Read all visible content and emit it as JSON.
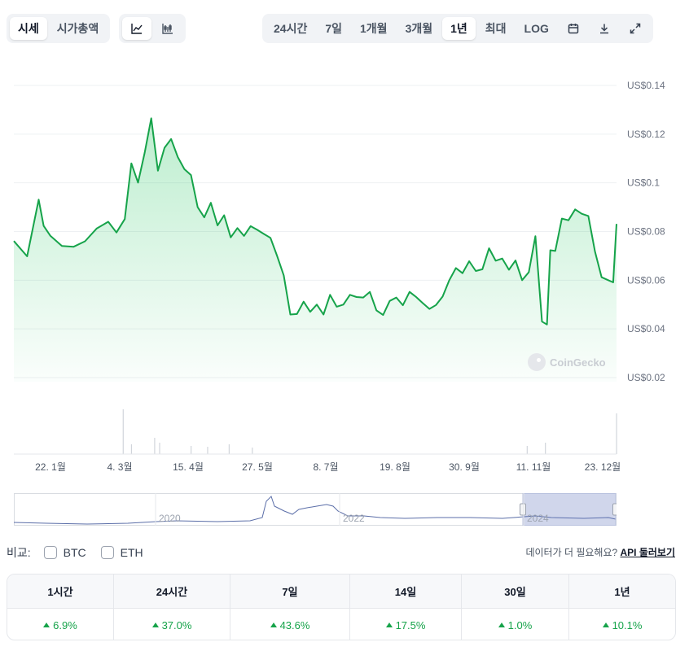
{
  "toolbar": {
    "view_tabs": [
      "시세",
      "시가총액"
    ],
    "range_tabs": [
      "24시간",
      "7일",
      "1개월",
      "3개월",
      "1년",
      "최대",
      "LOG"
    ],
    "active_range": "1년"
  },
  "chart_data": {
    "type": "area",
    "currency_prefix": "US$",
    "y_ticks": [
      "US$0.14",
      "US$0.12",
      "US$0.1",
      "US$0.08",
      "US$0.06",
      "US$0.04",
      "US$0.02"
    ],
    "x_ticks": [
      "22. 1월",
      "4. 3월",
      "15. 4월",
      "27. 5월",
      "8. 7월",
      "19. 8월",
      "30. 9월",
      "11. 11월",
      "23. 12월"
    ],
    "ylim": [
      0.02,
      0.14
    ],
    "price_series": {
      "name": "시세",
      "x": [
        "2023-12-25",
        "2024-01-02",
        "2024-01-09",
        "2024-01-12",
        "2024-01-16",
        "2024-01-23",
        "2024-01-30",
        "2024-02-06",
        "2024-02-13",
        "2024-02-20",
        "2024-02-25",
        "2024-03-01",
        "2024-03-05",
        "2024-03-09",
        "2024-03-13",
        "2024-03-17",
        "2024-03-21",
        "2024-03-25",
        "2024-03-29",
        "2024-04-02",
        "2024-04-06",
        "2024-04-10",
        "2024-04-14",
        "2024-04-18",
        "2024-04-22",
        "2024-04-26",
        "2024-04-30",
        "2024-05-04",
        "2024-05-08",
        "2024-05-12",
        "2024-05-16",
        "2024-05-20",
        "2024-05-24",
        "2024-05-28",
        "2024-06-01",
        "2024-06-05",
        "2024-06-09",
        "2024-06-13",
        "2024-06-17",
        "2024-06-21",
        "2024-06-25",
        "2024-06-29",
        "2024-07-03",
        "2024-07-07",
        "2024-07-11",
        "2024-07-15",
        "2024-07-19",
        "2024-07-23",
        "2024-07-27",
        "2024-07-31",
        "2024-08-04",
        "2024-08-08",
        "2024-08-12",
        "2024-08-16",
        "2024-08-20",
        "2024-08-24",
        "2024-08-28",
        "2024-09-01",
        "2024-09-05",
        "2024-09-09",
        "2024-09-13",
        "2024-09-17",
        "2024-09-21",
        "2024-09-25",
        "2024-09-29",
        "2024-10-03",
        "2024-10-07",
        "2024-10-11",
        "2024-10-15",
        "2024-10-19",
        "2024-10-23",
        "2024-10-27",
        "2024-10-31",
        "2024-11-04",
        "2024-11-08",
        "2024-11-11",
        "2024-11-13",
        "2024-11-16",
        "2024-11-20",
        "2024-11-24",
        "2024-11-28",
        "2024-12-02",
        "2024-12-06",
        "2024-12-10",
        "2024-12-14",
        "2024-12-18",
        "2024-12-21",
        "2024-12-23"
      ],
      "y": [
        0.0761,
        0.0698,
        0.0931,
        0.0823,
        0.0783,
        0.0741,
        0.0737,
        0.076,
        0.0812,
        0.084,
        0.0796,
        0.0851,
        0.108,
        0.1001,
        0.1123,
        0.1265,
        0.105,
        0.1144,
        0.118,
        0.1106,
        0.1056,
        0.1032,
        0.09,
        0.0858,
        0.0918,
        0.0825,
        0.0867,
        0.0776,
        0.0814,
        0.0782,
        0.0822,
        0.0807,
        0.079,
        0.0774,
        0.07,
        0.062,
        0.0459,
        0.0461,
        0.0512,
        0.047,
        0.05,
        0.0459,
        0.054,
        0.0491,
        0.05,
        0.054,
        0.0531,
        0.0529,
        0.0552,
        0.0476,
        0.0457,
        0.0515,
        0.0529,
        0.0497,
        0.0552,
        0.0531,
        0.0506,
        0.0482,
        0.0498,
        0.0533,
        0.06,
        0.065,
        0.0629,
        0.0678,
        0.0638,
        0.0645,
        0.0731,
        0.068,
        0.0689,
        0.0643,
        0.0681,
        0.06,
        0.0633,
        0.0781,
        0.043,
        0.0418,
        0.0723,
        0.072,
        0.0853,
        0.0846,
        0.0891,
        0.0873,
        0.0864,
        0.0717,
        0.0612,
        0.06,
        0.0591,
        0.0831
      ]
    },
    "volume_series": {
      "name": "거래량",
      "x": [
        "2024-02-29",
        "2024-03-05",
        "2024-03-19",
        "2024-03-22",
        "2024-04-10",
        "2024-04-20",
        "2024-05-03",
        "2024-05-17",
        "2024-10-30",
        "2024-11-10",
        "2024-12-23"
      ],
      "y": [
        55,
        12,
        20,
        14,
        10,
        9,
        12,
        8,
        10,
        14,
        50
      ]
    },
    "overview": {
      "x_ticks": [
        "2020",
        "2022",
        "2024"
      ]
    },
    "watermark": "CoinGecko",
    "grid": true,
    "legend": "none"
  },
  "compare": {
    "label": "비교:",
    "options": [
      "BTC",
      "ETH"
    ]
  },
  "api_prompt": {
    "text": "데이터가 더 필요해요?",
    "link": "API 둘러보기"
  },
  "performance": {
    "headers": [
      "1시간",
      "24시간",
      "7일",
      "14일",
      "30일",
      "1년"
    ],
    "values": [
      "6.9%",
      "37.0%",
      "43.6%",
      "17.5%",
      "1.0%",
      "10.1%"
    ]
  }
}
